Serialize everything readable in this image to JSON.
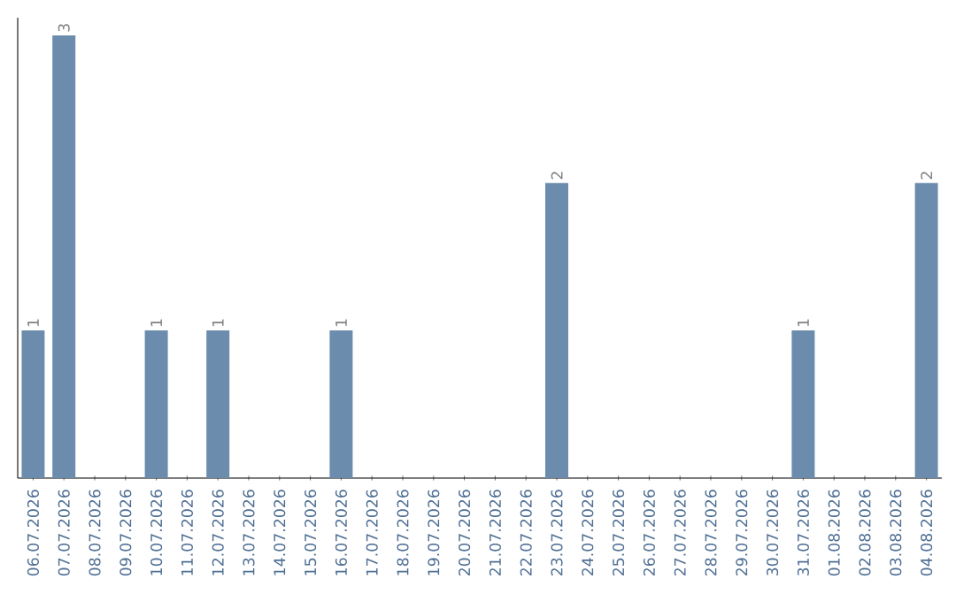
{
  "chart_data": {
    "type": "bar",
    "categories": [
      "06.07.2026",
      "07.07.2026",
      "08.07.2026",
      "09.07.2026",
      "10.07.2026",
      "11.07.2026",
      "12.07.2026",
      "13.07.2026",
      "14.07.2026",
      "15.07.2026",
      "16.07.2026",
      "17.07.2026",
      "18.07.2026",
      "19.07.2026",
      "20.07.2026",
      "21.07.2026",
      "22.07.2026",
      "23.07.2026",
      "24.07.2026",
      "25.07.2026",
      "26.07.2026",
      "27.07.2026",
      "28.07.2026",
      "29.07.2026",
      "30.07.2026",
      "31.07.2026",
      "01.08.2026",
      "02.08.2026",
      "03.08.2026",
      "04.08.2026"
    ],
    "values": [
      1,
      3,
      0,
      0,
      1,
      0,
      1,
      0,
      0,
      0,
      1,
      0,
      0,
      0,
      0,
      0,
      0,
      2,
      0,
      0,
      0,
      0,
      0,
      0,
      0,
      1,
      0,
      0,
      0,
      2
    ],
    "value_labels": [
      "1",
      "3",
      null,
      null,
      "1",
      null,
      "1",
      null,
      null,
      null,
      "1",
      null,
      null,
      null,
      null,
      null,
      null,
      "2",
      null,
      null,
      null,
      null,
      null,
      null,
      null,
      "1",
      null,
      null,
      null,
      "2"
    ],
    "color": "#6b8cad"
  }
}
